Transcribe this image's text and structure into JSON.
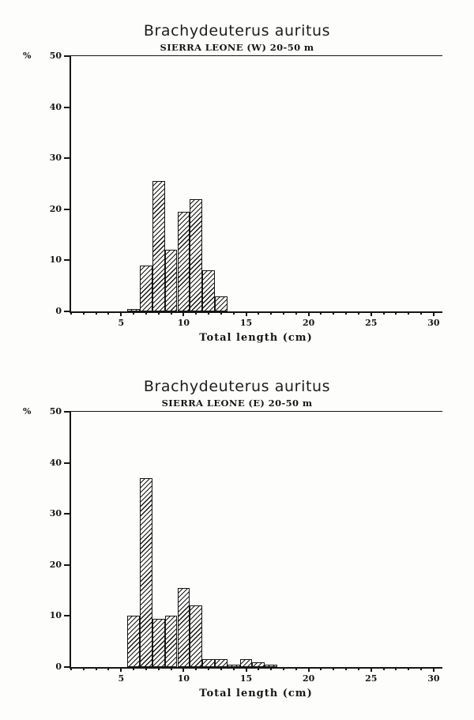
{
  "page": {
    "background": "#fdfdfb",
    "ink": "#161616"
  },
  "chart_data": [
    {
      "type": "bar",
      "title": "Brachydeuterus auritus",
      "subtitle": "SIERRA LEONE (W)  20-50 m",
      "xlabel": "Total length (cm)",
      "ylabel": "%",
      "xlim": [
        1,
        30.7
      ],
      "ylim": [
        0,
        50
      ],
      "y_ticks": [
        0,
        10,
        20,
        30,
        40,
        50
      ],
      "x_tick_minor_step": 1,
      "x_tick_label_step": 5,
      "x_tick_labels": [
        5,
        10,
        15,
        20,
        25,
        30
      ],
      "bar_width": 1,
      "hatch": "diagonal",
      "grid": false,
      "legend": "none",
      "x": [
        6,
        7,
        8,
        9,
        10,
        11,
        12,
        13
      ],
      "values": [
        0.5,
        9,
        25.5,
        12,
        19.5,
        22,
        8,
        3
      ]
    },
    {
      "type": "bar",
      "title": "Brachydeuterus auritus",
      "subtitle": "SIERRA LEONE (E)  20-50 m",
      "xlabel": "Total length (cm)",
      "ylabel": "%",
      "xlim": [
        1,
        30.7
      ],
      "ylim": [
        0,
        50
      ],
      "y_ticks": [
        0,
        10,
        20,
        30,
        40,
        50
      ],
      "x_tick_minor_step": 1,
      "x_tick_label_step": 5,
      "x_tick_labels": [
        5,
        10,
        15,
        20,
        25,
        30
      ],
      "bar_width": 1,
      "hatch": "diagonal",
      "grid": false,
      "legend": "none",
      "x": [
        6,
        7,
        8,
        9,
        10,
        11,
        12,
        13,
        14,
        15,
        16,
        17
      ],
      "values": [
        10,
        37,
        9.5,
        10,
        15.5,
        12,
        1.5,
        1.5,
        0.5,
        1.5,
        1,
        0.5
      ]
    }
  ]
}
